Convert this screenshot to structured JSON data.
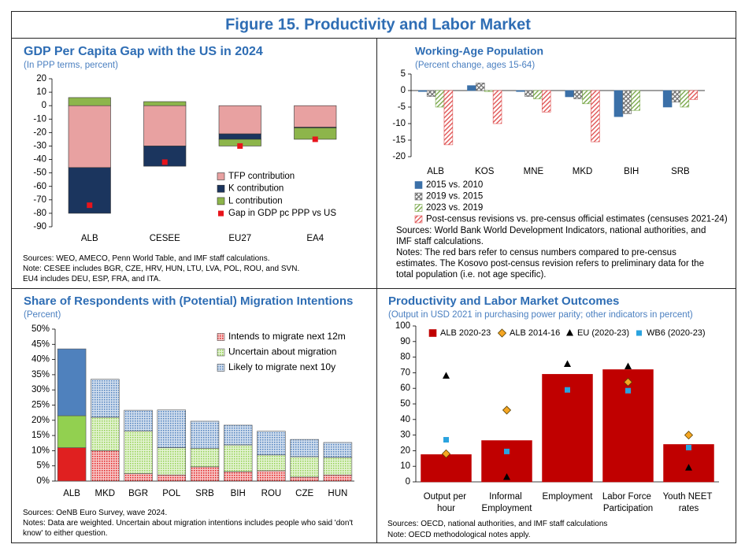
{
  "figure_title": "Figure 15. Productivity and Labor Market",
  "chart_data": [
    {
      "type": "bar",
      "stacked": true,
      "title": "GDP Per Capita Gap with the US in 2024",
      "subtitle": "(In PPP terms, percent)",
      "categories": [
        "ALB",
        "CESEE",
        "EU27",
        "EA4"
      ],
      "series": [
        {
          "name": "TFP contribution",
          "color": "#e8a1a1",
          "values": [
            -46,
            -30,
            -21,
            -16
          ]
        },
        {
          "name": "K contribution",
          "color": "#1b355e",
          "values": [
            -34,
            -15,
            -4,
            -0.5
          ]
        },
        {
          "name": "L contribution",
          "color": "#8db54b",
          "values": [
            6,
            3,
            -5,
            -8.5
          ]
        },
        {
          "name": "Gap in GDP pc PPP vs US",
          "type": "scatter",
          "marker": "square",
          "color": "#e8141b",
          "values": [
            -74,
            -42,
            -30,
            -25
          ]
        }
      ],
      "ylim": [
        -90,
        20
      ],
      "yticks": [
        -90,
        -80,
        -70,
        -60,
        -50,
        -40,
        -30,
        -20,
        -10,
        0,
        10,
        20
      ],
      "notes": [
        "Sources: WEO, AMECO, Penn World Table, and IMF staff calculations.",
        "Note: CESEE includes BGR, CZE, HRV, HUN, LTU, LVA, POL, ROU, and SVN.",
        "EU4 includes DEU, ESP, FRA, and ITA."
      ]
    },
    {
      "type": "bar",
      "title": "Working-Age Population",
      "subtitle": "(Percent change, ages 15-64)",
      "categories": [
        "ALB",
        "KOS",
        "MNE",
        "MKD",
        "BIH",
        "SRB"
      ],
      "series": [
        {
          "name": "2015 vs. 2010",
          "color": "#3b70a8",
          "hatch": "solid",
          "values": [
            -0.3,
            1.5,
            -0.3,
            -1.9,
            -7.9,
            -5
          ]
        },
        {
          "name": "2019 vs. 2015",
          "color": "#6f6f6f",
          "hatch": "cross",
          "values": [
            -1.8,
            2.3,
            -1.8,
            -2.5,
            -7,
            -3.5
          ]
        },
        {
          "name": "2023 vs. 2019",
          "color": "#7aa84a",
          "hatch": "diagonal",
          "values": [
            -5,
            -0.3,
            -2.5,
            -4,
            -6,
            -5
          ]
        },
        {
          "name": "Post-census revisions vs. pre-census official estimates (censuses 2021-24)",
          "color": "#e05555",
          "hatch": "diagonal",
          "values": [
            -16.4,
            -10,
            -6.5,
            -15.5,
            null,
            -2.7
          ]
        }
      ],
      "ylim": [
        -20,
        5
      ],
      "yticks": [
        -20,
        -15,
        -10,
        -5,
        0,
        5
      ],
      "notes": [
        "Sources: World Bank World Development Indicators, national authorities, and IMF staff calculations.",
        "Notes: The red bars refer to census numbers compared to pre-census estimates. The Kosovo post-census revision refers to preliminary data for the total population (i.e. not age specific)."
      ]
    },
    {
      "type": "bar",
      "stacked": true,
      "highlight": "ALB",
      "title": "Share of Respondents with (Potential) Migration Intentions",
      "subtitle": "(Percent)",
      "categories": [
        "ALB",
        "MKD",
        "BGR",
        "POL",
        "SRB",
        "BIH",
        "ROU",
        "CZE",
        "HUN"
      ],
      "series": [
        {
          "name": "Intends to migrate next 12m",
          "color": "#e02020",
          "hatch": "dots",
          "values": [
            11,
            10,
            2.5,
            2,
            4.7,
            3.1,
            3.4,
            1.3,
            2
          ]
        },
        {
          "name": "Uncertain about migration",
          "color": "#92d050",
          "hatch": "dots",
          "values": [
            10.5,
            11,
            14,
            9,
            6,
            8.8,
            5.2,
            6.7,
            5.8
          ]
        },
        {
          "name": "Likely to migrate next 10y",
          "color": "#4f81bd",
          "hatch": "dots",
          "values": [
            22,
            12.5,
            6.8,
            12.4,
            9,
            6.5,
            7.8,
            5.7,
            4.9
          ]
        }
      ],
      "ylim": [
        0,
        50
      ],
      "yticks": [
        {
          "value": 0,
          "label": "0%"
        },
        {
          "value": 5,
          "label": "5%"
        },
        {
          "value": 10,
          "label": "10%"
        },
        {
          "value": 15,
          "label": "15%"
        },
        {
          "value": 20,
          "label": "20%"
        },
        {
          "value": 25,
          "label": "25%"
        },
        {
          "value": 30,
          "label": "30%"
        },
        {
          "value": 35,
          "label": "35%"
        },
        {
          "value": 40,
          "label": "40%"
        },
        {
          "value": 45,
          "label": "45%"
        },
        {
          "value": 50,
          "label": "50%"
        }
      ],
      "notes": [
        "Sources: OeNB Euro Survey, wave 2024.",
        "Notes: Data are weighted. Uncertain about migration intentions includes people who said 'don't know' to either question."
      ]
    },
    {
      "type": "bar",
      "title": "Productivity and Labor Market Outcomes",
      "subtitle": "(Output in USD 2021 in purchasing power parity; other indicators in percent)",
      "categories": [
        "Output per hour",
        "Informal Employment",
        "Employment",
        "Labor Force Participation",
        "Youth NEET rates"
      ],
      "series": [
        {
          "name": "ALB 2020-23",
          "color": "#c00000",
          "values": [
            17.5,
            26.5,
            69,
            72,
            24
          ]
        },
        {
          "name": "ALB 2014-16",
          "type": "scatter",
          "marker": "diamond",
          "color": "#f5a623",
          "values": [
            18,
            46,
            null,
            64,
            30
          ]
        },
        {
          "name": "EU (2020-23)",
          "type": "scatter",
          "marker": "triangle",
          "color": "#000000",
          "values": [
            68,
            3,
            75.5,
            74,
            9
          ]
        },
        {
          "name": "WB6 (2020-23)",
          "type": "scatter",
          "marker": "square",
          "color": "#2aa3df",
          "values": [
            27,
            19.5,
            59,
            58.5,
            22
          ]
        }
      ],
      "ylim": [
        0,
        100
      ],
      "yticks": [
        0,
        10,
        20,
        30,
        40,
        50,
        60,
        70,
        80,
        90,
        100
      ],
      "notes": [
        "Sources: OECD, national authorities, and IMF staff calculations",
        "Note: OECD methodological notes apply."
      ]
    }
  ]
}
